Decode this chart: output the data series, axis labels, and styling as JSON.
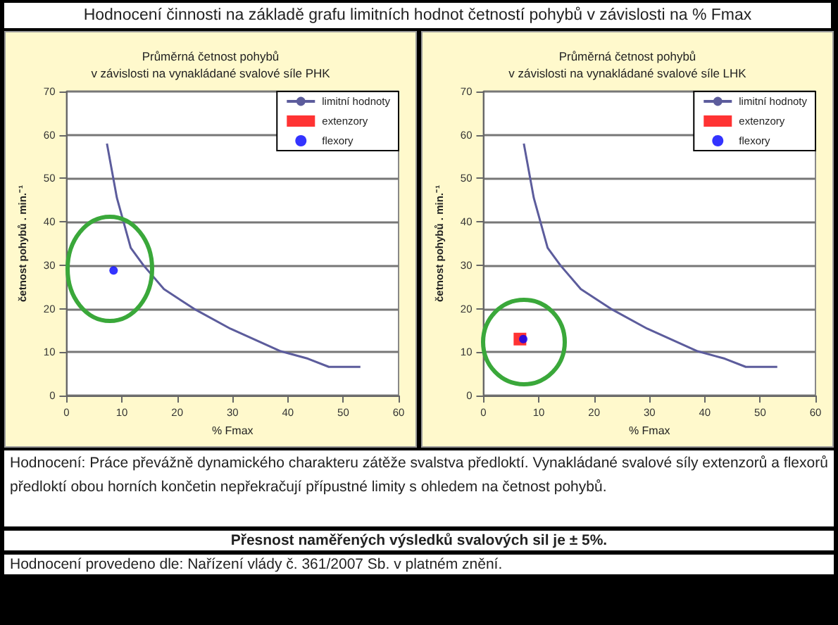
{
  "chart_data": [
    {
      "type": "other",
      "title": "Hodnocení činnosti na základě grafu limitních hodnot četností pohybů v závislosti na % Fmax"
    },
    {
      "type": "line",
      "title": "Průměrná četnost pohybů\nv závislosti na vynakládané svalové síle PHK",
      "xlabel": "% Fmax",
      "ylabel": "četnost pohybů . min.⁻¹",
      "xlim": [
        0,
        60
      ],
      "xticks": [
        0,
        10,
        20,
        30,
        40,
        50,
        60
      ],
      "ylim": [
        0,
        70
      ],
      "yticks": [
        0,
        10,
        20,
        30,
        40,
        50,
        60,
        70
      ],
      "grid": "y",
      "legend": "top right",
      "series": [
        {
          "name": "limitní hodnoty",
          "type": "line",
          "color": "#5c5c9c",
          "marker": "none",
          "x": [
            7.3,
            9.1,
            11.6,
            13.9,
            17.6,
            23,
            29.6,
            38.7,
            43.6,
            47.4,
            53.1
          ],
          "values": [
            58,
            45.5,
            34,
            30,
            24.5,
            20,
            15.4,
            10.2,
            8.5,
            6.6,
            6.6
          ]
        },
        {
          "name": "extenzory",
          "type": "scatter",
          "color": "#ff0000",
          "marker": "square"
        },
        {
          "name": "flexory",
          "type": "scatter",
          "color": "#0000ff",
          "marker": "circle",
          "x": [
            8.5
          ],
          "values": [
            28.8
          ]
        }
      ]
    },
    {
      "type": "line",
      "title": "Průměrná četnost pohybů\nv závislosti na vynakládané svalové síle LHK",
      "xlabel": "% Fmax",
      "ylabel": "četnost pohybů . min.⁻¹",
      "xlim": [
        0,
        60
      ],
      "xticks": [
        0,
        10,
        20,
        30,
        40,
        50,
        60
      ],
      "ylim": [
        0,
        70
      ],
      "yticks": [
        0,
        10,
        20,
        30,
        40,
        50,
        60,
        70
      ],
      "grid": "y",
      "legend": "top right",
      "series": [
        {
          "name": "limitní hodnoty",
          "type": "line",
          "color": "#5c5c9c",
          "marker": "none",
          "x": [
            7.3,
            9.1,
            11.6,
            13.9,
            17.6,
            23,
            29.6,
            38.7,
            43.6,
            47.4,
            53.1
          ],
          "values": [
            58,
            45.5,
            34,
            30,
            24.5,
            20,
            15.4,
            10.2,
            8.5,
            6.6,
            6.6
          ]
        },
        {
          "name": "extenzory",
          "type": "scatter",
          "color": "#ff0000",
          "marker": "square",
          "x": [
            6.6
          ],
          "values": [
            13
          ]
        },
        {
          "name": "flexory",
          "type": "scatter",
          "color": "#0000ff",
          "marker": "circle",
          "x": [
            7.2
          ],
          "values": [
            13
          ]
        }
      ]
    },
    {
      "type": "other",
      "annotations": [
        "Hodnocení: Práce převážně dynamického charakteru zátěže svalstva předloktí. Vynakládané svalové síly extenzorů a flexorů předloktí obou horních končetin nepřekračují přípustné limity s ohledem na četnost pohybů.",
        "Přesnost naměřených výsledků svalových sil je ± 5%.",
        "Hodnocení provedeno dle: Nařízení vlády č. 361/2007 Sb. v platném znění."
      ]
    }
  ]
}
